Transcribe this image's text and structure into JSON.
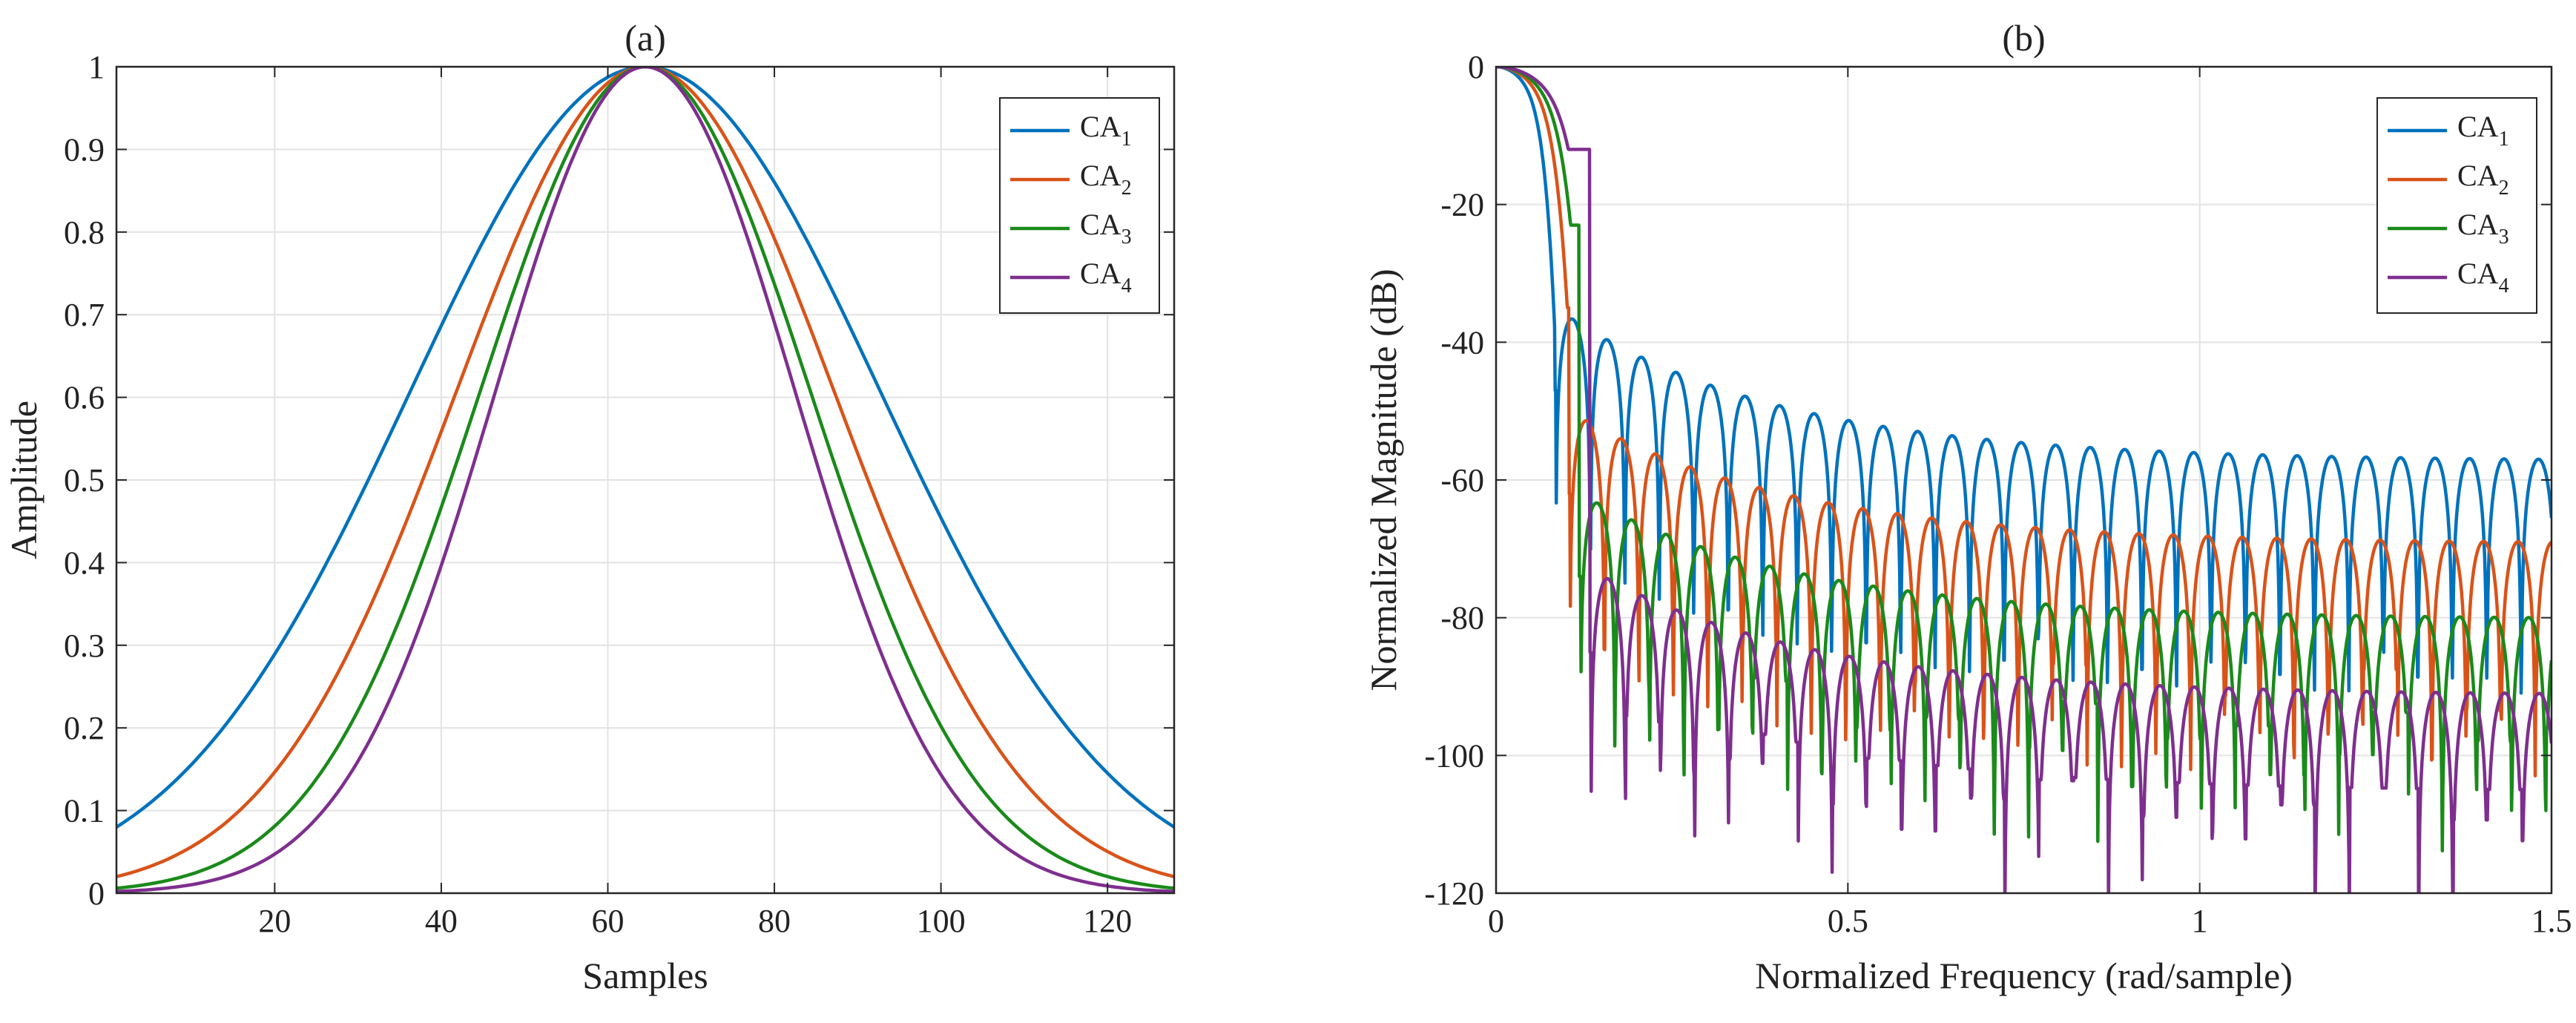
{
  "chart_data": [
    {
      "panel": "a",
      "type": "line",
      "title": "(a)",
      "xlabel": "Samples",
      "ylabel": "Amplitude",
      "xlim": [
        1,
        128
      ],
      "ylim": [
        0,
        1
      ],
      "xticks": [
        20,
        40,
        60,
        80,
        100,
        120
      ],
      "yticks": [
        0,
        0.1,
        0.2,
        0.3,
        0.4,
        0.5,
        0.6,
        0.7,
        0.8,
        0.9,
        1
      ],
      "ytick_labels": [
        "0",
        "0.1",
        "0.2",
        "0.3",
        "0.4",
        "0.5",
        "0.6",
        "0.7",
        "0.8",
        "0.9",
        "1"
      ],
      "grid": true,
      "legend_position": "top-right",
      "legend": [
        "CA1",
        "CA2",
        "CA3",
        "CA4"
      ],
      "series": [
        {
          "name": "CA1",
          "base": "CA",
          "sub": "1",
          "color": "#0072BD",
          "center": 64.5,
          "end_value": 0.08
        },
        {
          "name": "CA2",
          "base": "CA",
          "sub": "2",
          "color": "#D95319",
          "center": 64.5,
          "end_value": 0.02
        },
        {
          "name": "CA3",
          "base": "CA",
          "sub": "3",
          "color": "#1A8A1A",
          "center": 64.5,
          "end_value": 0.006
        },
        {
          "name": "CA4",
          "base": "CA",
          "sub": "4",
          "color": "#7E2F8E",
          "center": 64.5,
          "end_value": 0.002
        }
      ]
    },
    {
      "panel": "b",
      "type": "line",
      "title": "(b)",
      "xlabel": "Normalized Frequency (rad/sample)",
      "ylabel": "Normalized Magnitude (dB)",
      "xlim": [
        0,
        1.5
      ],
      "ylim": [
        -120,
        0
      ],
      "xticks": [
        0,
        0.5,
        1,
        1.5
      ],
      "xtick_labels": [
        "0",
        "0.5",
        "1",
        "1.5"
      ],
      "yticks": [
        0,
        -20,
        -40,
        -60,
        -80,
        -100,
        -120
      ],
      "ytick_labels": [
        "0",
        "-20",
        "-40",
        "-60",
        "-80",
        "-100",
        "-120"
      ],
      "grid": true,
      "legend_position": "top-right",
      "legend": [
        "CA1",
        "CA2",
        "CA3",
        "CA4"
      ],
      "series": [
        {
          "name": "CA1",
          "base": "CA",
          "sub": "1",
          "color": "#0072BD",
          "first_null": 0.085,
          "first_sidelobe_db": -35,
          "sidelobe_at_1_5_db": -57
        },
        {
          "name": "CA2",
          "base": "CA",
          "sub": "2",
          "color": "#D95319",
          "first_null": 0.105,
          "first_sidelobe_db": -50,
          "sidelobe_at_1_5_db": -69
        },
        {
          "name": "CA3",
          "base": "CA",
          "sub": "3",
          "color": "#1A8A1A",
          "first_null": 0.12,
          "first_sidelobe_db": -62,
          "sidelobe_at_1_5_db": -80
        },
        {
          "name": "CA4",
          "base": "CA",
          "sub": "4",
          "color": "#7E2F8E",
          "first_null": 0.135,
          "first_sidelobe_db": -73,
          "sidelobe_at_1_5_db": -91
        }
      ]
    }
  ]
}
